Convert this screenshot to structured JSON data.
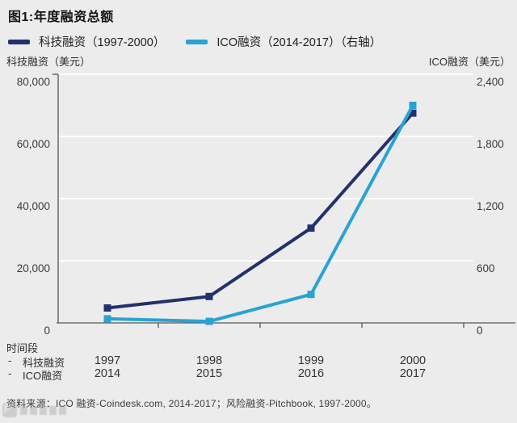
{
  "title": "图1:年度融资总额",
  "legend": {
    "series1": "科技融资（1997-2000）",
    "series2": "ICO融资（2014-2017）（右轴）"
  },
  "axes": {
    "left_caption": "科技融资（美元）",
    "right_caption": "ICO融资（美元）",
    "left_ticks": [
      "80,000",
      "60,000",
      "40,000",
      "20,000",
      "0"
    ],
    "right_ticks": [
      "2,400",
      "1,800",
      "1,200",
      "600",
      "0"
    ]
  },
  "chart_data": {
    "type": "line",
    "title": "图1:年度融资总额",
    "categories_primary": [
      "1997",
      "1998",
      "1999",
      "2000"
    ],
    "categories_secondary": [
      "2014",
      "2015",
      "2016",
      "2017"
    ],
    "series": [
      {
        "name": "科技融资（1997-2000）",
        "axis": "left",
        "color": "#22306e",
        "marker": "square",
        "values": [
          4800,
          8500,
          30500,
          67500
        ]
      },
      {
        "name": "ICO融资（2014-2017）（右轴）",
        "axis": "right",
        "color": "#27a3d6",
        "marker": "square",
        "values": [
          40,
          15,
          275,
          2100
        ]
      }
    ],
    "left_axis": {
      "label": "科技融资（美元）",
      "min": 0,
      "max": 80000,
      "tick_step": 20000
    },
    "right_axis": {
      "label": "ICO融资（美元）",
      "min": 0,
      "max": 2400,
      "tick_step": 600
    },
    "grid": true,
    "grid_color": "#ffffff",
    "background": "#edecec",
    "legend_position": "top"
  },
  "footer": {
    "period_label": "时间段",
    "rows": [
      {
        "dash": "-",
        "name": "科技融资",
        "years": [
          "1997",
          "1998",
          "1999",
          "2000"
        ]
      },
      {
        "dash": "-",
        "name": "ICO融资",
        "years": [
          "2014",
          "2015",
          "2016",
          "2017"
        ]
      }
    ],
    "source": "资料来源：ICO 融资-Coindesk.com, 2014-2017；风险融资-Pitchbook, 1997-2000。"
  },
  "colors": {
    "tech_series": "#22306e",
    "ico_series": "#27a3d6",
    "axis_line": "#55565a",
    "gridline": "#ffffff",
    "background": "#edecec"
  }
}
